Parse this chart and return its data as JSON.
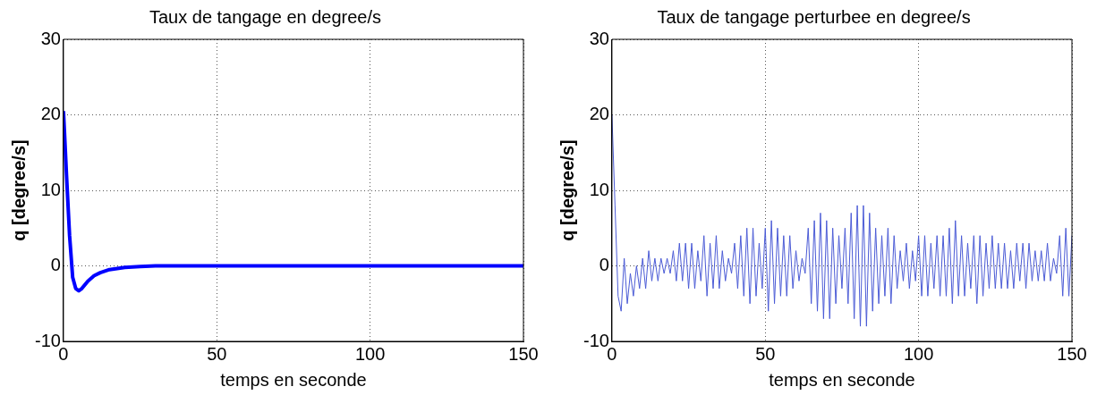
{
  "chart_data": [
    {
      "type": "line",
      "title": "Taux de tangage en degree/s",
      "xlabel": "temps en seconde",
      "ylabel": "q [degree/s]",
      "xlim": [
        0,
        150
      ],
      "xticks": [
        0,
        50,
        100,
        150
      ],
      "ylim": [
        -10,
        30
      ],
      "yticks": [
        -10,
        0,
        10,
        20,
        30
      ],
      "grid": true,
      "series": [
        {
          "color": "#0000ff",
          "x": [
            0,
            0.3,
            1,
            2,
            3,
            4,
            5,
            6,
            8,
            10,
            12,
            15,
            20,
            25,
            30,
            50,
            100,
            150
          ],
          "values": [
            20.5,
            18,
            12,
            4,
            -1.5,
            -3,
            -3.3,
            -3,
            -2,
            -1.3,
            -0.9,
            -0.5,
            -0.2,
            -0.1,
            0,
            0,
            0,
            0
          ]
        }
      ]
    },
    {
      "type": "line",
      "title": "Taux de tangage perturbee en degree/s",
      "xlabel": "temps en seconde",
      "ylabel": "q [degree/s]",
      "xlim": [
        0,
        150
      ],
      "xticks": [
        0,
        50,
        100,
        150
      ],
      "ylim": [
        -10,
        30
      ],
      "yticks": [
        -10,
        0,
        10,
        20,
        30
      ],
      "grid": true,
      "series": [
        {
          "color": "#4b5bd6",
          "x": [
            0,
            1,
            2,
            3,
            4,
            5,
            6,
            7,
            8,
            9,
            10,
            11,
            12,
            13,
            14,
            15,
            16,
            17,
            18,
            19,
            20,
            21,
            22,
            23,
            24,
            25,
            26,
            27,
            28,
            29,
            30,
            31,
            32,
            33,
            34,
            35,
            36,
            37,
            38,
            39,
            40,
            41,
            42,
            43,
            44,
            45,
            46,
            47,
            48,
            49,
            50,
            51,
            52,
            53,
            54,
            55,
            56,
            57,
            58,
            59,
            60,
            61,
            62,
            63,
            64,
            65,
            66,
            67,
            68,
            69,
            70,
            71,
            72,
            73,
            74,
            75,
            76,
            77,
            78,
            79,
            80,
            81,
            82,
            83,
            84,
            85,
            86,
            87,
            88,
            89,
            90,
            91,
            92,
            93,
            94,
            95,
            96,
            97,
            98,
            99,
            100,
            101,
            102,
            103,
            104,
            105,
            106,
            107,
            108,
            109,
            110,
            111,
            112,
            113,
            114,
            115,
            116,
            117,
            118,
            119,
            120,
            121,
            122,
            123,
            124,
            125,
            126,
            127,
            128,
            129,
            130,
            131,
            132,
            133,
            134,
            135,
            136,
            137,
            138,
            139,
            140,
            141,
            142,
            143,
            144,
            145,
            146,
            147,
            148,
            149,
            150
          ],
          "values": [
            20,
            8,
            -4,
            -6,
            1,
            -5,
            -1,
            -4,
            0,
            -3,
            1,
            -3,
            2,
            -2,
            1,
            -2,
            1,
            -1,
            1,
            -1,
            2,
            -2,
            3,
            -2,
            3,
            -3,
            3,
            -3,
            2,
            -2,
            4,
            -4,
            3,
            -3,
            4,
            -3,
            2,
            -2,
            1,
            -1,
            3,
            -3,
            4,
            -4,
            5,
            -5,
            5,
            -4,
            3,
            -3,
            5,
            -6,
            6,
            -5,
            5,
            -4,
            4,
            -4,
            4,
            -3,
            2,
            -2,
            1,
            -1,
            5,
            -5,
            6,
            -6,
            7,
            -7,
            6,
            -7,
            5,
            -5,
            4,
            -3,
            5,
            -5,
            7,
            -7,
            8,
            -8,
            8,
            -8,
            7,
            -6,
            5,
            -5,
            4,
            -4,
            5,
            -5,
            4,
            -3,
            2,
            -2,
            3,
            -3,
            2,
            -2,
            4,
            -4,
            4,
            -4,
            3,
            -3,
            4,
            -4,
            4,
            -4,
            5,
            -5,
            6,
            -4,
            4,
            -4,
            3,
            -3,
            4,
            -5,
            4,
            -4,
            3,
            -3,
            4,
            -3,
            3,
            -3,
            3,
            -3,
            2,
            -3,
            3,
            -2,
            3,
            -3,
            3,
            -2,
            2,
            -2,
            2,
            -2,
            3,
            -2,
            1,
            -1,
            4,
            -4,
            5,
            -4,
            4
          ]
        }
      ]
    }
  ]
}
